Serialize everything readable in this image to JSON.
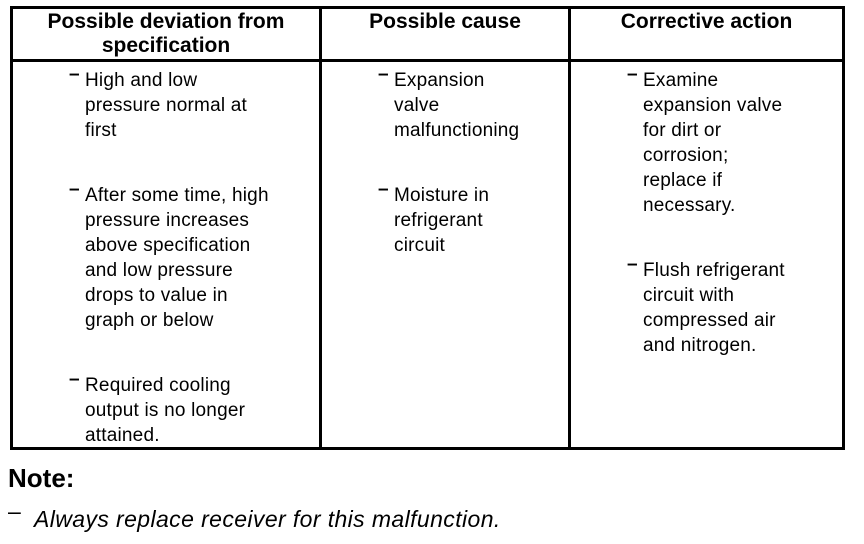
{
  "bullet_char": "–",
  "colors": {
    "border": "#000000",
    "text": "#000000",
    "background": "#ffffff"
  },
  "table": {
    "headers": [
      {
        "id": "deviation",
        "label": "Possible deviation from\nspecification"
      },
      {
        "id": "cause",
        "label": "Possible cause"
      },
      {
        "id": "action",
        "label": "Corrective action"
      }
    ],
    "columns": [
      {
        "items": [
          "High and low\npressure normal at\nfirst",
          "After some time, high\npressure increases\nabove specification\nand low pressure\ndrops to value in\ngraph or below",
          "Required cooling\noutput is no longer\nattained."
        ]
      },
      {
        "items": [
          "Expansion\nvalve\nmalfunctioning",
          "Moisture in\nrefrigerant\ncircuit"
        ]
      },
      {
        "items": [
          "Examine\nexpansion valve\nfor dirt or\ncorrosion;\nreplace if\nnecessary.",
          "Flush refrigerant\ncircuit with\ncompressed air\nand nitrogen."
        ]
      }
    ]
  },
  "note": {
    "title": "Note:",
    "items": [
      "Always replace receiver for this malfunction."
    ]
  }
}
